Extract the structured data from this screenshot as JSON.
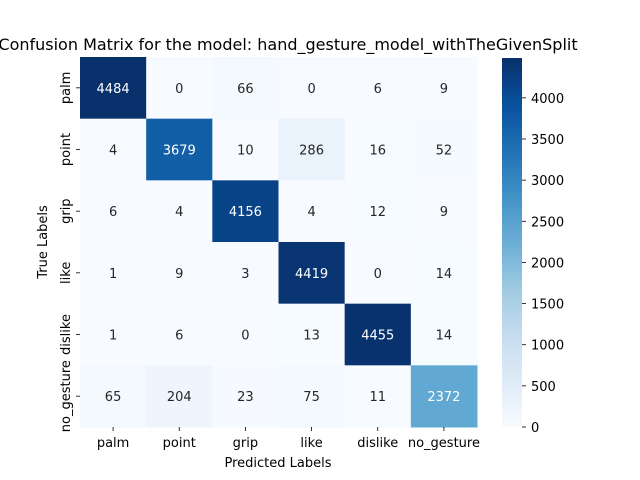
{
  "chart_data": {
    "type": "heatmap",
    "title": "Confusion Matrix for the model: hand_gesture_model_withTheGivenSplit",
    "xlabel": "Predicted Labels",
    "ylabel": "True Labels",
    "x_categories": [
      "palm",
      "point",
      "grip",
      "like",
      "dislike",
      "no_gesture"
    ],
    "y_categories": [
      "palm",
      "point",
      "grip",
      "like",
      "dislike",
      "no_gesture"
    ],
    "values": [
      [
        4484,
        0,
        66,
        0,
        6,
        9
      ],
      [
        4,
        3679,
        10,
        286,
        16,
        52
      ],
      [
        6,
        4,
        4156,
        4,
        12,
        9
      ],
      [
        1,
        9,
        3,
        4419,
        0,
        14
      ],
      [
        1,
        6,
        0,
        13,
        4455,
        14
      ],
      [
        65,
        204,
        23,
        75,
        11,
        2372
      ]
    ],
    "colorbar": {
      "colormap": "Blues",
      "vmin": 0,
      "vmax": 4484,
      "ticks": [
        0,
        500,
        1000,
        1500,
        2000,
        2500,
        3000,
        3500,
        4000
      ]
    }
  }
}
